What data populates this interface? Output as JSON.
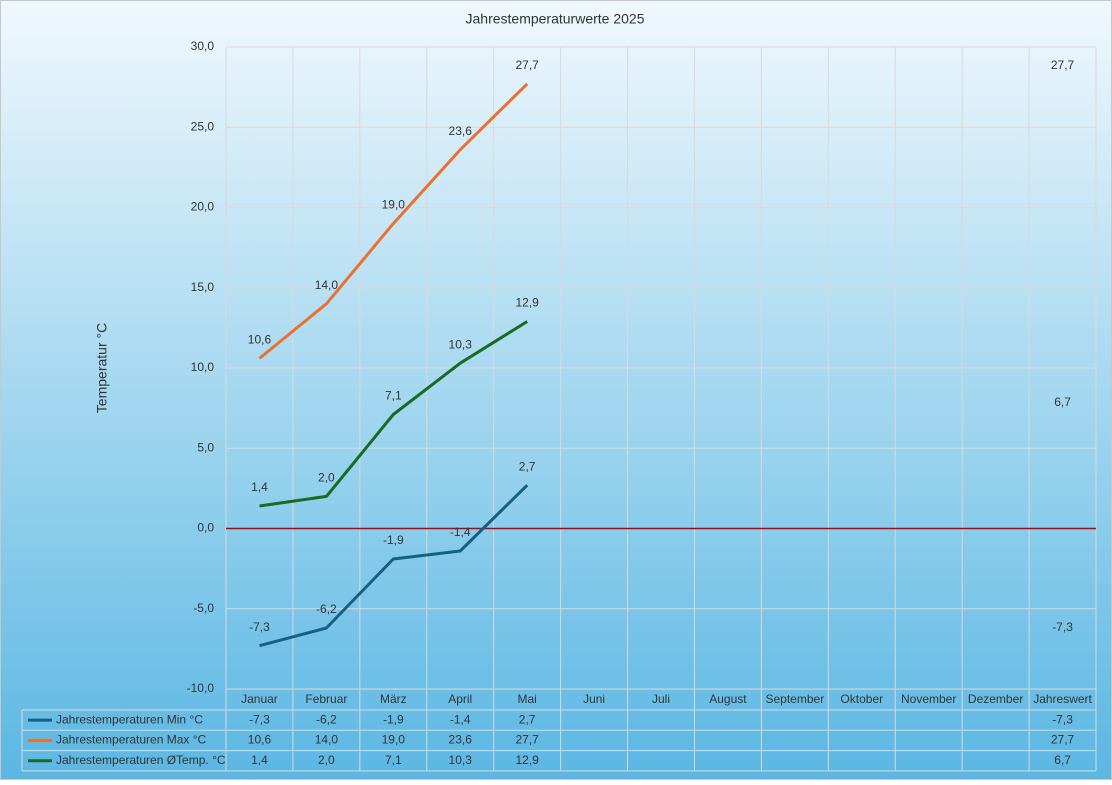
{
  "chart_data": {
    "type": "line",
    "title": "Jahrestemperaturwerte 2025",
    "y_label": "Temperatur °C",
    "categories": [
      "Januar",
      "Februar",
      "März",
      "April",
      "Mai",
      "Juni",
      "Juli",
      "August",
      "September",
      "Oktober",
      "November",
      "Dezember",
      "Jahreswert"
    ],
    "series": [
      {
        "name": "Jahrestemperaturen Min °C",
        "color": "#156082",
        "values": [
          -7.3,
          -6.2,
          -1.9,
          -1.4,
          2.7,
          null,
          null,
          null,
          null,
          null,
          null,
          null,
          -7.3
        ],
        "value_labels": [
          "-7,3",
          "-6,2",
          "-1,9",
          "-1,4",
          "2,7",
          null,
          null,
          null,
          null,
          null,
          null,
          null,
          "-7,3"
        ]
      },
      {
        "name": "Jahrestemperaturen Max °C",
        "color": "#e97132",
        "values": [
          10.6,
          14.0,
          19.0,
          23.6,
          27.7,
          null,
          null,
          null,
          null,
          null,
          null,
          null,
          27.7
        ],
        "value_labels": [
          "10,6",
          "14,0",
          "19,0",
          "23,6",
          "27,7",
          null,
          null,
          null,
          null,
          null,
          null,
          null,
          "27,7"
        ]
      },
      {
        "name": "Jahrestemperaturen ØTemp. °C",
        "color": "#196b24",
        "values": [
          1.4,
          2.0,
          7.1,
          10.3,
          12.9,
          null,
          null,
          null,
          null,
          null,
          null,
          null,
          6.7
        ],
        "value_labels": [
          "1,4",
          "2,0",
          "7,1",
          "10,3",
          "12,9",
          null,
          null,
          null,
          null,
          null,
          null,
          null,
          "6,7"
        ]
      }
    ],
    "ylim": [
      -10,
      30
    ],
    "yticks": [
      {
        "value": -10,
        "label": "-10,0"
      },
      {
        "value": -5,
        "label": "-5,0"
      },
      {
        "value": 0,
        "label": "0,0"
      },
      {
        "value": 5,
        "label": "5,0"
      },
      {
        "value": 10,
        "label": "10,0"
      },
      {
        "value": 15,
        "label": "15,0"
      },
      {
        "value": 20,
        "label": "20,0"
      },
      {
        "value": 25,
        "label": "25,0"
      },
      {
        "value": 30,
        "label": "30,0"
      }
    ],
    "grid": true,
    "zero_line_color": "#c00000",
    "data_table": true
  }
}
